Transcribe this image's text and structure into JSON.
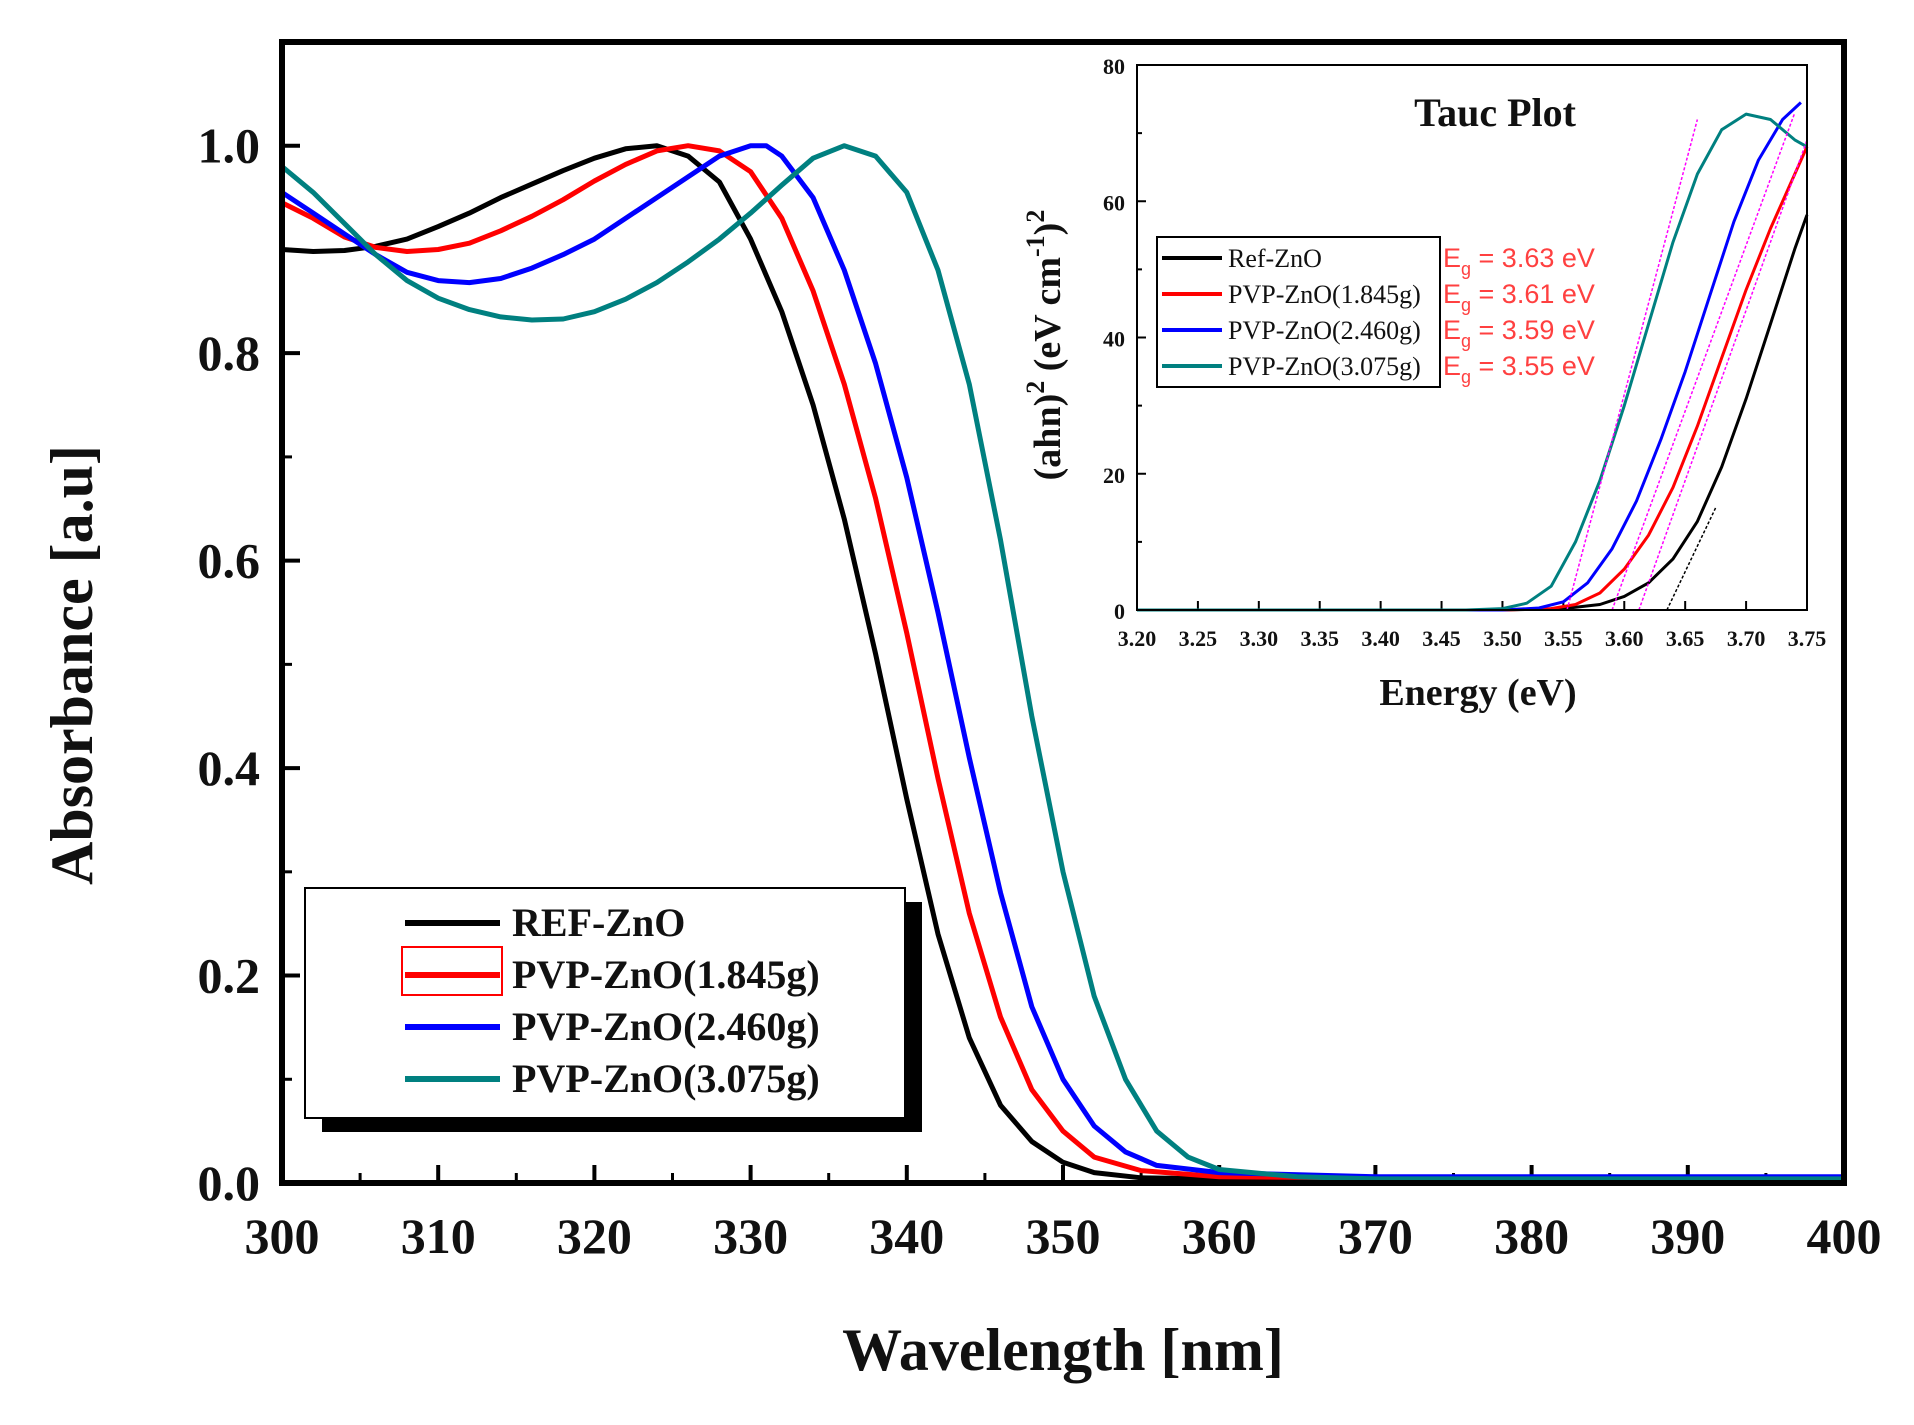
{
  "chart_data": [
    {
      "type": "line",
      "title": "",
      "xlabel": "Wavelength [nm]",
      "ylabel": "Absorbance [a.u]",
      "xlim": [
        300,
        400
      ],
      "ylim": [
        0.0,
        1.1
      ],
      "xticks": [
        300,
        310,
        320,
        330,
        340,
        350,
        360,
        370,
        380,
        390,
        400
      ],
      "xtick_labels": [
        "300",
        "310",
        "320",
        "330",
        "340",
        "350",
        "360",
        "370",
        "380",
        "390",
        "400"
      ],
      "yticks": [
        0.0,
        0.2,
        0.4,
        0.6,
        0.8,
        1.0
      ],
      "ytick_labels": [
        "0.0",
        "0.2",
        "0.4",
        "0.6",
        "0.8",
        "1.0"
      ],
      "grid": false,
      "legend_position": "bottom-left",
      "series": [
        {
          "name": "REF-ZnO",
          "color": "#000000",
          "points": [
            [
              300,
              0.9
            ],
            [
              302,
              0.898
            ],
            [
              304,
              0.899
            ],
            [
              306,
              0.903
            ],
            [
              308,
              0.91
            ],
            [
              310,
              0.922
            ],
            [
              312,
              0.935
            ],
            [
              314,
              0.95
            ],
            [
              316,
              0.963
            ],
            [
              318,
              0.976
            ],
            [
              320,
              0.988
            ],
            [
              322,
              0.997
            ],
            [
              324,
              1.0
            ],
            [
              326,
              0.99
            ],
            [
              328,
              0.965
            ],
            [
              330,
              0.91
            ],
            [
              332,
              0.84
            ],
            [
              334,
              0.75
            ],
            [
              336,
              0.64
            ],
            [
              338,
              0.51
            ],
            [
              340,
              0.37
            ],
            [
              342,
              0.24
            ],
            [
              344,
              0.14
            ],
            [
              346,
              0.075
            ],
            [
              348,
              0.04
            ],
            [
              350,
              0.02
            ],
            [
              352,
              0.01
            ],
            [
              355,
              0.005
            ],
            [
              360,
              0.004
            ],
            [
              370,
              0.004
            ],
            [
              380,
              0.004
            ],
            [
              390,
              0.004
            ],
            [
              400,
              0.004
            ]
          ]
        },
        {
          "name": "PVP-ZnO(1.845g)",
          "color": "#ff0000",
          "points": [
            [
              300,
              0.945
            ],
            [
              302,
              0.93
            ],
            [
              304,
              0.912
            ],
            [
              306,
              0.902
            ],
            [
              308,
              0.898
            ],
            [
              310,
              0.9
            ],
            [
              312,
              0.906
            ],
            [
              314,
              0.918
            ],
            [
              316,
              0.932
            ],
            [
              318,
              0.948
            ],
            [
              320,
              0.966
            ],
            [
              322,
              0.982
            ],
            [
              324,
              0.995
            ],
            [
              326,
              1.0
            ],
            [
              328,
              0.995
            ],
            [
              330,
              0.975
            ],
            [
              332,
              0.93
            ],
            [
              334,
              0.86
            ],
            [
              336,
              0.77
            ],
            [
              338,
              0.66
            ],
            [
              340,
              0.53
            ],
            [
              342,
              0.39
            ],
            [
              344,
              0.26
            ],
            [
              346,
              0.16
            ],
            [
              348,
              0.09
            ],
            [
              350,
              0.05
            ],
            [
              352,
              0.025
            ],
            [
              355,
              0.012
            ],
            [
              360,
              0.006
            ],
            [
              370,
              0.005
            ],
            [
              380,
              0.005
            ],
            [
              390,
              0.005
            ],
            [
              400,
              0.005
            ]
          ]
        },
        {
          "name": "PVP-ZnO(2.460g)",
          "color": "#0000ff",
          "points": [
            [
              300,
              0.955
            ],
            [
              302,
              0.935
            ],
            [
              304,
              0.915
            ],
            [
              306,
              0.895
            ],
            [
              308,
              0.878
            ],
            [
              310,
              0.87
            ],
            [
              312,
              0.868
            ],
            [
              314,
              0.872
            ],
            [
              316,
              0.882
            ],
            [
              318,
              0.895
            ],
            [
              320,
              0.91
            ],
            [
              322,
              0.93
            ],
            [
              324,
              0.95
            ],
            [
              326,
              0.97
            ],
            [
              328,
              0.99
            ],
            [
              330,
              1.0
            ],
            [
              331,
              1.0
            ],
            [
              332,
              0.99
            ],
            [
              334,
              0.95
            ],
            [
              336,
              0.88
            ],
            [
              338,
              0.79
            ],
            [
              340,
              0.68
            ],
            [
              342,
              0.55
            ],
            [
              344,
              0.41
            ],
            [
              346,
              0.28
            ],
            [
              348,
              0.17
            ],
            [
              350,
              0.1
            ],
            [
              352,
              0.055
            ],
            [
              354,
              0.03
            ],
            [
              356,
              0.017
            ],
            [
              360,
              0.01
            ],
            [
              370,
              0.006
            ],
            [
              380,
              0.006
            ],
            [
              390,
              0.006
            ],
            [
              400,
              0.006
            ]
          ]
        },
        {
          "name": "PVP-ZnO(3.075g)",
          "color": "#008080",
          "points": [
            [
              300,
              0.98
            ],
            [
              302,
              0.955
            ],
            [
              304,
              0.925
            ],
            [
              306,
              0.895
            ],
            [
              308,
              0.87
            ],
            [
              310,
              0.853
            ],
            [
              312,
              0.842
            ],
            [
              314,
              0.835
            ],
            [
              316,
              0.832
            ],
            [
              318,
              0.833
            ],
            [
              320,
              0.84
            ],
            [
              322,
              0.852
            ],
            [
              324,
              0.868
            ],
            [
              326,
              0.888
            ],
            [
              328,
              0.91
            ],
            [
              330,
              0.935
            ],
            [
              332,
              0.962
            ],
            [
              334,
              0.988
            ],
            [
              336,
              1.0
            ],
            [
              338,
              0.99
            ],
            [
              340,
              0.955
            ],
            [
              342,
              0.88
            ],
            [
              344,
              0.77
            ],
            [
              346,
              0.62
            ],
            [
              348,
              0.45
            ],
            [
              350,
              0.3
            ],
            [
              352,
              0.18
            ],
            [
              354,
              0.1
            ],
            [
              356,
              0.05
            ],
            [
              358,
              0.025
            ],
            [
              360,
              0.013
            ],
            [
              365,
              0.006
            ],
            [
              370,
              0.004
            ],
            [
              380,
              0.004
            ],
            [
              390,
              0.004
            ],
            [
              400,
              0.004
            ]
          ]
        }
      ]
    },
    {
      "type": "line",
      "title": "Tauc Plot",
      "xlabel": "Energy (eV)",
      "ylabel_main": "(ahn)",
      "ylabel_sup1": "2",
      "ylabel_mid": " (eV cm",
      "ylabel_sup2": "-1",
      "ylabel_close": ")",
      "ylabel_sup3": "2",
      "xlim": [
        3.2,
        3.75
      ],
      "ylim": [
        0,
        80
      ],
      "xticks": [
        3.2,
        3.25,
        3.3,
        3.35,
        3.4,
        3.45,
        3.5,
        3.55,
        3.6,
        3.65,
        3.7,
        3.75
      ],
      "xtick_labels": [
        "3.20",
        "3.25",
        "3.30",
        "3.35",
        "3.40",
        "3.45",
        "3.50",
        "3.55",
        "3.60",
        "3.65",
        "3.70",
        "3.75"
      ],
      "yticks": [
        0,
        20,
        40,
        60,
        80
      ],
      "ytick_labels": [
        "0",
        "20",
        "40",
        "60",
        "80"
      ],
      "legend_position": "top-left",
      "series": [
        {
          "name": "Ref-ZnO",
          "color": "#000000",
          "eg_label": "E = 3.63 eV",
          "eg_sub": "g",
          "fit_line": [
            [
              3.635,
              0
            ],
            [
              3.675,
              15
            ]
          ],
          "fit_color": "#000000",
          "points": [
            [
              3.2,
              0
            ],
            [
              3.5,
              0
            ],
            [
              3.55,
              0.2
            ],
            [
              3.58,
              0.8
            ],
            [
              3.6,
              2
            ],
            [
              3.62,
              4
            ],
            [
              3.64,
              7.5
            ],
            [
              3.66,
              13
            ],
            [
              3.68,
              21
            ],
            [
              3.7,
              31
            ],
            [
              3.72,
              42
            ],
            [
              3.74,
              53
            ],
            [
              3.75,
              58
            ]
          ]
        },
        {
          "name": "PVP-ZnO(1.845g)",
          "color": "#ff0000",
          "eg_label": "E = 3.61 eV",
          "eg_sub": "g",
          "fit_line": [
            [
              3.612,
              0
            ],
            [
              3.75,
              69
            ]
          ],
          "fit_color": "#ff00ff",
          "points": [
            [
              3.2,
              0
            ],
            [
              3.5,
              0
            ],
            [
              3.54,
              0.2
            ],
            [
              3.56,
              0.8
            ],
            [
              3.58,
              2.5
            ],
            [
              3.6,
              6
            ],
            [
              3.62,
              11
            ],
            [
              3.64,
              18
            ],
            [
              3.66,
              27
            ],
            [
              3.68,
              37
            ],
            [
              3.7,
              47
            ],
            [
              3.72,
              56
            ],
            [
              3.74,
              64
            ],
            [
              3.75,
              68
            ]
          ]
        },
        {
          "name": "PVP-ZnO(2.460g)",
          "color": "#0000ff",
          "eg_label": "E = 3.59 eV",
          "eg_sub": "g",
          "fit_line": [
            [
              3.59,
              0
            ],
            [
              3.74,
              73
            ]
          ],
          "fit_color": "#ff00ff",
          "points": [
            [
              3.2,
              0
            ],
            [
              3.5,
              0
            ],
            [
              3.53,
              0.3
            ],
            [
              3.55,
              1.2
            ],
            [
              3.57,
              4
            ],
            [
              3.59,
              9
            ],
            [
              3.61,
              16
            ],
            [
              3.63,
              25
            ],
            [
              3.65,
              35
            ],
            [
              3.67,
              46
            ],
            [
              3.69,
              57
            ],
            [
              3.71,
              66
            ],
            [
              3.73,
              72
            ],
            [
              3.745,
              74.5
            ]
          ]
        },
        {
          "name": "PVP-ZnO(3.075g)",
          "color": "#008080",
          "eg_label": "E = 3.55 eV",
          "eg_sub": "g",
          "fit_line": [
            [
              3.553,
              0
            ],
            [
              3.66,
              72
            ]
          ],
          "fit_color": "#ff00ff",
          "points": [
            [
              3.2,
              0
            ],
            [
              3.47,
              0
            ],
            [
              3.5,
              0.2
            ],
            [
              3.52,
              1
            ],
            [
              3.54,
              3.5
            ],
            [
              3.56,
              10
            ],
            [
              3.58,
              19
            ],
            [
              3.6,
              30
            ],
            [
              3.62,
              42
            ],
            [
              3.64,
              54
            ],
            [
              3.66,
              64
            ],
            [
              3.68,
              70.5
            ],
            [
              3.7,
              72.8
            ],
            [
              3.72,
              72
            ],
            [
              3.74,
              69
            ],
            [
              3.75,
              68
            ]
          ]
        }
      ]
    }
  ]
}
